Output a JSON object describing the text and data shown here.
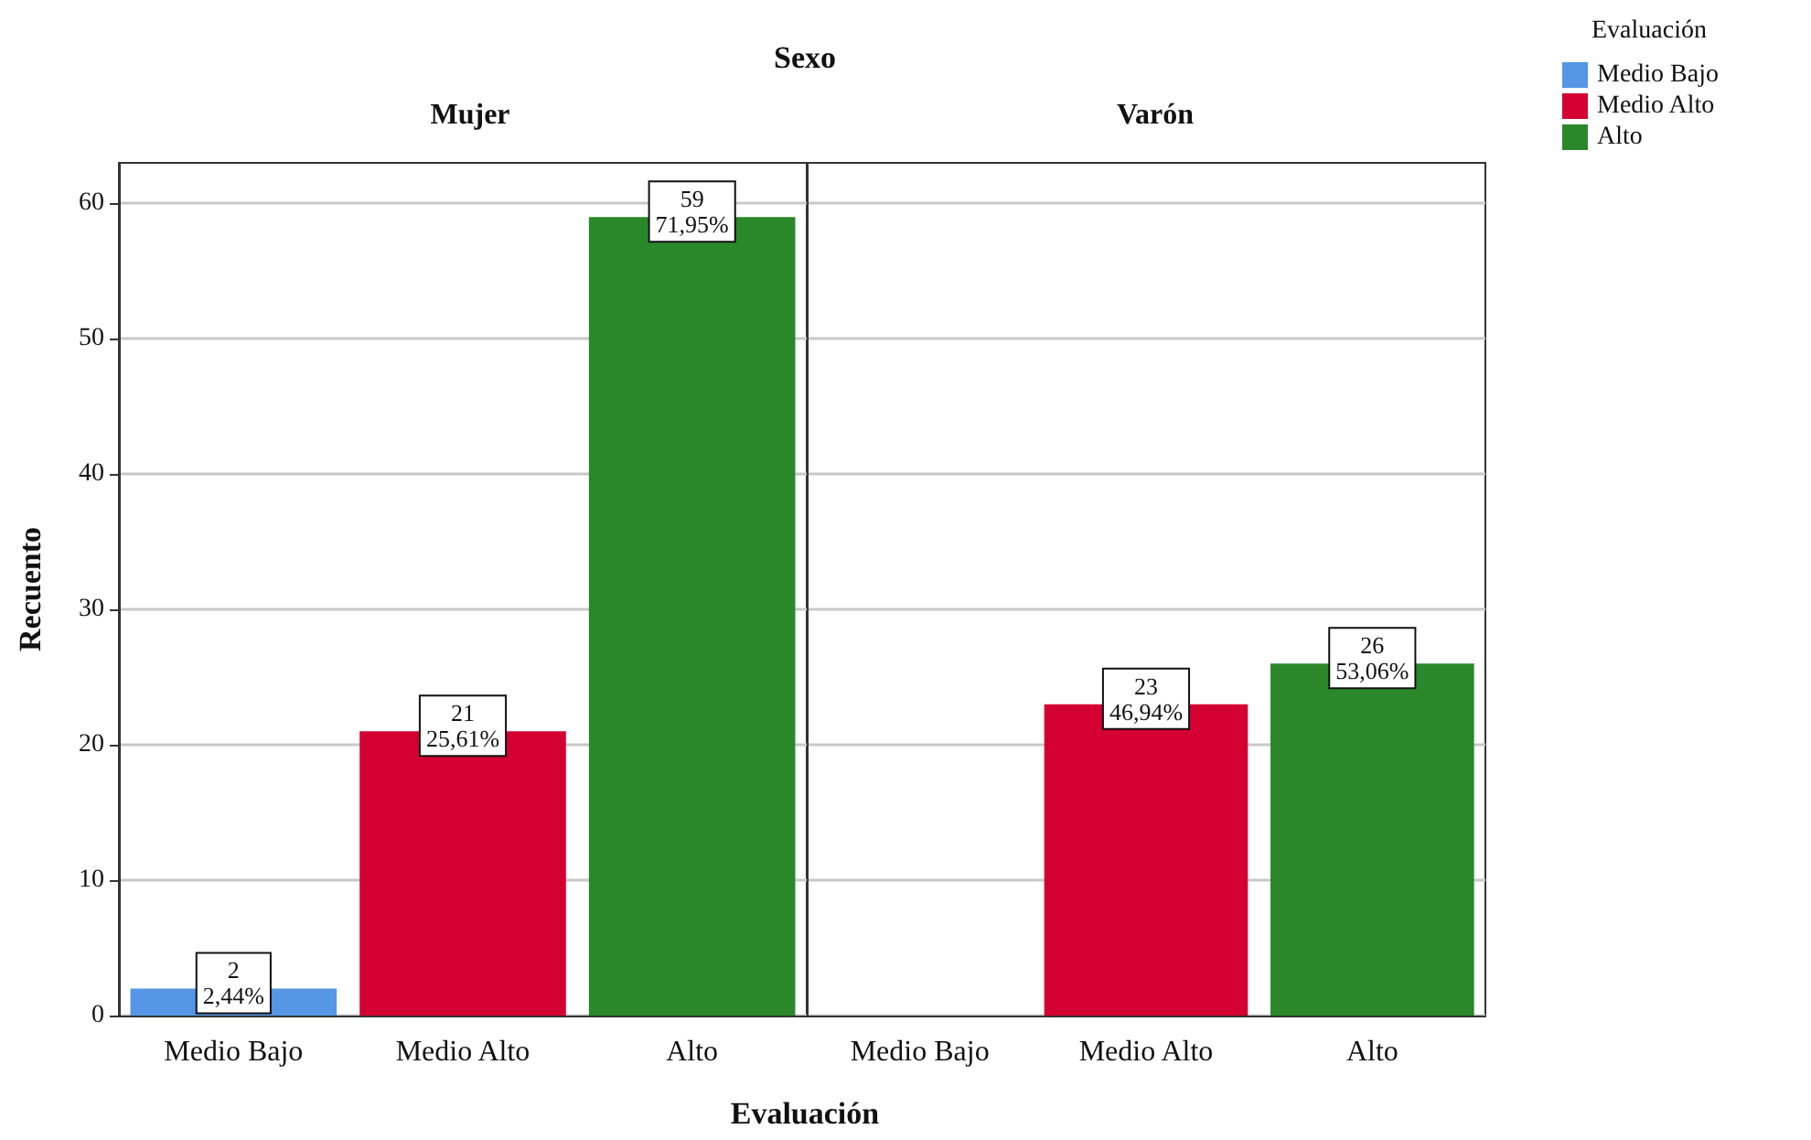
{
  "chart_data": [
    {
      "type": "bar",
      "title": "Mujer",
      "annotations": [
        "Sexo"
      ],
      "xlabel": "Evaluación",
      "ylabel": "Recuento",
      "categories": [
        "Medio Bajo",
        "Medio Alto",
        "Alto"
      ],
      "stacked": true,
      "ylim": [
        0,
        63
      ],
      "yticks": [
        0,
        10,
        20,
        30,
        40,
        50,
        60
      ],
      "grid": "y",
      "series": [
        {
          "color": "#5596e6",
          "values": [
            2,
            null,
            null
          ],
          "value_labels": [
            "2\n2,44%",
            null,
            null
          ]
        },
        {
          "color": "#d50032",
          "values": [
            null,
            21,
            null
          ],
          "value_labels": [
            null,
            "21\n25,61%",
            null
          ]
        },
        {
          "color": "#2a882a",
          "values": [
            null,
            null,
            59
          ],
          "value_labels": [
            null,
            null,
            "59\n71,95%"
          ]
        }
      ]
    },
    {
      "type": "bar",
      "title": "Varón",
      "categories": [
        "Medio Bajo",
        "Medio Alto",
        "Alto"
      ],
      "stacked": true,
      "ylim": [
        0,
        63
      ],
      "yticks": [
        0,
        10,
        20,
        30,
        40,
        50,
        60
      ],
      "grid": "y",
      "tick_labels": "x",
      "legend": "top right",
      "legend_title": "Evaluación",
      "series": [
        {
          "name": "Medio Bajo",
          "color": "#5596e6",
          "values": [
            null,
            null,
            null
          ]
        },
        {
          "name": "Medio Alto",
          "color": "#d50032",
          "values": [
            null,
            23,
            null
          ],
          "value_labels": [
            null,
            "23\n46,94%",
            null
          ]
        },
        {
          "name": "Alto",
          "color": "#2a882a",
          "values": [
            null,
            null,
            26
          ],
          "value_labels": [
            null,
            null,
            "26\n53,06%"
          ]
        }
      ]
    }
  ]
}
